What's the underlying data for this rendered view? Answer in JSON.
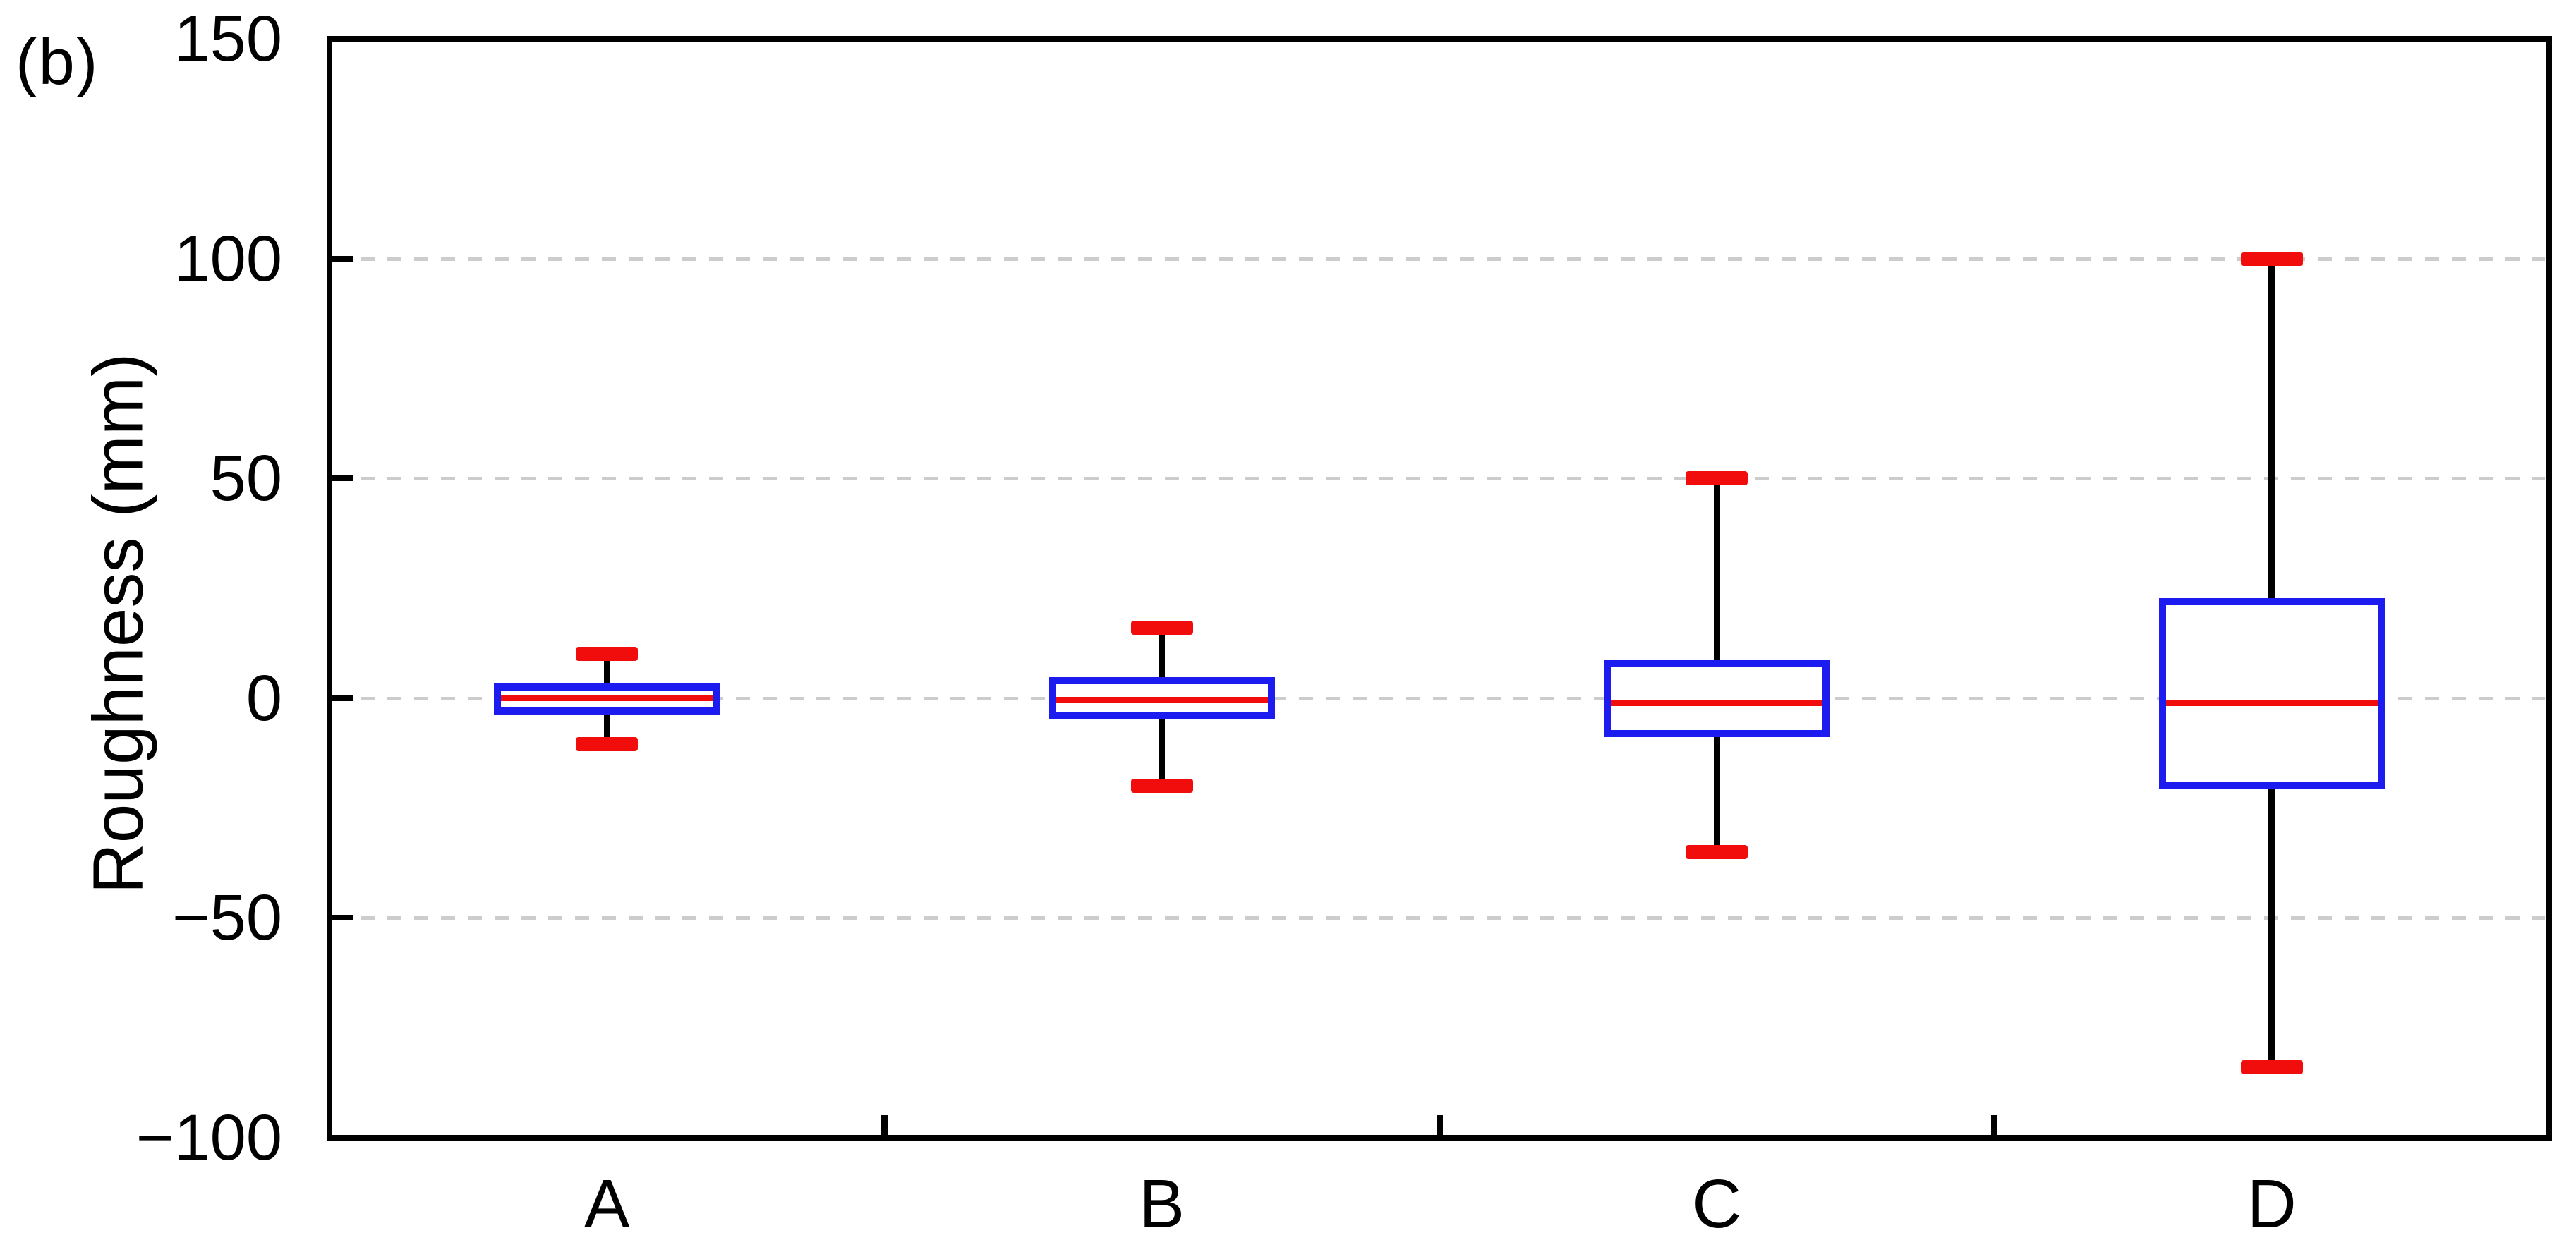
{
  "figure_label": "(b)",
  "colors": {
    "box_border": "#1c1cf0",
    "median": "#f20d0d",
    "whisker_cap": "#f20d0d",
    "whisker_line": "#000000",
    "axis": "#000000",
    "gridline": "#cccccc",
    "background": "#ffffff",
    "text": "#000000"
  },
  "chart_data": {
    "type": "boxplot",
    "title": "",
    "xlabel": "",
    "ylabel": "Roughness (mm)",
    "categories": [
      "A",
      "B",
      "C",
      "D"
    ],
    "ylim": [
      -100,
      150
    ],
    "yticks": [
      150,
      100,
      50,
      0,
      -50,
      -100
    ],
    "ytick_labels": [
      "150",
      "100",
      "50",
      "0",
      "−50",
      "−100"
    ],
    "gridlines_at": [
      100,
      50,
      0,
      -50
    ],
    "grid": "dashed-horizontal",
    "legend": "none",
    "series": [
      {
        "category": "A",
        "whisker_low": -10.5,
        "q1": -3,
        "median": 0,
        "q3": 2.5,
        "whisker_high": 10
      },
      {
        "category": "B",
        "whisker_low": -20,
        "q1": -4,
        "median": -0.5,
        "q3": 4,
        "whisker_high": 16
      },
      {
        "category": "C",
        "whisker_low": -35,
        "q1": -8,
        "median": -1,
        "q3": 8,
        "whisker_high": 50
      },
      {
        "category": "D",
        "whisker_low": -84,
        "q1": -20,
        "median": -1,
        "q3": 22,
        "whisker_high": 100
      }
    ]
  }
}
